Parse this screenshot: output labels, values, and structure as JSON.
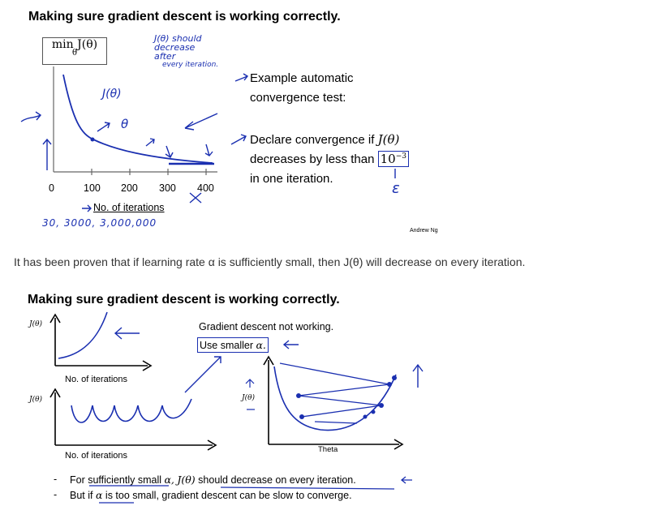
{
  "slide1": {
    "title": "Making sure gradient descent is working correctly.",
    "ylabel_line1": "min J(θ)",
    "ylabel_line2": "θ",
    "x_ticks": [
      "0",
      "100",
      "200",
      "300",
      "400"
    ],
    "xlabel": "No. of iterations",
    "hand_j": "J(θ)",
    "hand_note": [
      "J(θ) should",
      "decrease",
      "after",
      "every iteration."
    ],
    "hand_iters": "30,   3000,   3,000,000",
    "hand_theta": "θ",
    "hand_eps": "ε",
    "auto_line1": "Example automatic",
    "auto_line2": "convergence test:",
    "declare_prefix": "Declare convergence if",
    "declare_jtheta": "J(θ)",
    "decrease_prefix": "decreases by less than",
    "threshold": "10",
    "threshold_exp": "−3",
    "one_iter": "in one iteration.",
    "credit": "Andrew Ng"
  },
  "caption": "It has been proven that if learning rate α is sufficiently small, then J(θ) will decrease on every iteration.",
  "slide2": {
    "title": "Making sure gradient descent is working correctly.",
    "j_label": "J(θ)",
    "xlabel_top": "No. of iterations",
    "xlabel_bottom": "No. of iterations",
    "not_working": "Gradient descent not working.",
    "use_smaller": "Use smaller",
    "alpha": "α.",
    "right_jlabel": "J(θ)",
    "theta_label": "Theta",
    "bullet1_a": "For sufficiently small",
    "bullet1_alpha": "α,",
    "bullet1_j": "J(θ)",
    "bullet1_b": "should decrease on every iteration.",
    "bullet2_a": "But if",
    "bullet2_alpha": "α",
    "bullet2_b": "is too small, gradient descent can be slow to converge.",
    "bullet_marker": "-"
  },
  "colors": {
    "ink": "#1a2fb0",
    "axis": "#000000",
    "caption": "#333333"
  }
}
